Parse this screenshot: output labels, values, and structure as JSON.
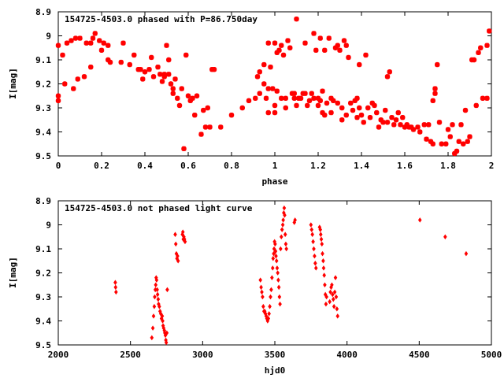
{
  "chart_data": [
    {
      "type": "scatter",
      "title": "154725-4503.0 phased with P=86.750day",
      "xlabel": "phase",
      "ylabel": "I[mag]",
      "xlim": [
        0,
        2
      ],
      "ylim": [
        8.9,
        9.5
      ],
      "y_inverted": true,
      "x_ticks": [
        "0",
        "0.2",
        "0.4",
        "0.6",
        "0.8",
        "1",
        "1.2",
        "1.4",
        "1.6",
        "1.8",
        "2"
      ],
      "x_tick_values": [
        0,
        0.2,
        0.4,
        0.6,
        0.8,
        1.0,
        1.2,
        1.4,
        1.6,
        1.8,
        2.0
      ],
      "y_ticks": [
        "8.9",
        "9",
        "9.1",
        "9.2",
        "9.3",
        "9.4",
        "9.5"
      ],
      "y_tick_values": [
        8.9,
        9.0,
        9.1,
        9.2,
        9.3,
        9.4,
        9.5
      ],
      "grid": false,
      "marker_color": "#ff0000",
      "points": [
        [
          0.0,
          9.04
        ],
        [
          0.0,
          9.25
        ],
        [
          0.0,
          9.27
        ],
        [
          0.02,
          9.08
        ],
        [
          0.03,
          9.2
        ],
        [
          0.04,
          9.03
        ],
        [
          0.06,
          9.02
        ],
        [
          0.07,
          9.22
        ],
        [
          0.08,
          9.01
        ],
        [
          0.09,
          9.18
        ],
        [
          0.1,
          9.01
        ],
        [
          0.12,
          9.17
        ],
        [
          0.13,
          9.03
        ],
        [
          0.15,
          9.03
        ],
        [
          0.15,
          9.13
        ],
        [
          0.16,
          9.01
        ],
        [
          0.17,
          8.99
        ],
        [
          0.19,
          9.02
        ],
        [
          0.2,
          9.06
        ],
        [
          0.21,
          9.03
        ],
        [
          0.23,
          9.04
        ],
        [
          0.23,
          9.1
        ],
        [
          0.24,
          9.11
        ],
        [
          0.29,
          9.11
        ],
        [
          0.3,
          9.03
        ],
        [
          0.33,
          9.12
        ],
        [
          0.35,
          9.08
        ],
        [
          0.37,
          9.14
        ],
        [
          0.38,
          9.14
        ],
        [
          0.39,
          9.18
        ],
        [
          0.4,
          9.15
        ],
        [
          0.42,
          9.14
        ],
        [
          0.43,
          9.09
        ],
        [
          0.44,
          9.17
        ],
        [
          0.46,
          9.13
        ],
        [
          0.47,
          9.16
        ],
        [
          0.48,
          9.19
        ],
        [
          0.49,
          9.16
        ],
        [
          0.49,
          9.17
        ],
        [
          0.5,
          9.04
        ],
        [
          0.51,
          9.16
        ],
        [
          0.51,
          9.1
        ],
        [
          0.52,
          9.2
        ],
        [
          0.53,
          9.24
        ],
        [
          0.53,
          9.22
        ],
        [
          0.54,
          9.18
        ],
        [
          0.55,
          9.26
        ],
        [
          0.56,
          9.29
        ],
        [
          0.57,
          9.22
        ],
        [
          0.58,
          9.47
        ],
        [
          0.59,
          9.08
        ],
        [
          0.6,
          9.25
        ],
        [
          0.61,
          9.27
        ],
        [
          0.62,
          9.26
        ],
        [
          0.63,
          9.33
        ],
        [
          0.64,
          9.25
        ],
        [
          0.66,
          9.41
        ],
        [
          0.67,
          9.31
        ],
        [
          0.68,
          9.38
        ],
        [
          0.69,
          9.3
        ],
        [
          0.7,
          9.38
        ],
        [
          0.71,
          9.14
        ],
        [
          0.72,
          9.14
        ],
        [
          0.75,
          9.38
        ],
        [
          0.8,
          9.33
        ],
        [
          0.85,
          9.3
        ],
        [
          0.88,
          9.27
        ],
        [
          0.91,
          9.26
        ],
        [
          0.92,
          9.17
        ],
        [
          0.93,
          9.15
        ],
        [
          0.93,
          9.24
        ],
        [
          0.95,
          9.2
        ],
        [
          0.95,
          9.12
        ],
        [
          0.96,
          9.26
        ],
        [
          0.97,
          9.03
        ],
        [
          0.97,
          9.22
        ],
        [
          0.97,
          9.32
        ],
        [
          0.98,
          9.13
        ],
        [
          0.99,
          9.22
        ],
        [
          1.0,
          9.03
        ],
        [
          1.0,
          9.29
        ],
        [
          1.0,
          9.32
        ],
        [
          1.01,
          9.23
        ],
        [
          1.01,
          9.07
        ],
        [
          1.02,
          9.06
        ],
        [
          1.03,
          9.04
        ],
        [
          1.03,
          9.26
        ],
        [
          1.04,
          9.08
        ],
        [
          1.05,
          9.26
        ],
        [
          1.05,
          9.3
        ],
        [
          1.06,
          9.02
        ],
        [
          1.07,
          9.05
        ],
        [
          1.08,
          9.24
        ],
        [
          1.09,
          9.24
        ],
        [
          1.09,
          9.26
        ],
        [
          1.1,
          8.93
        ],
        [
          1.1,
          9.29
        ],
        [
          1.11,
          9.26
        ],
        [
          1.12,
          9.26
        ],
        [
          1.13,
          9.24
        ],
        [
          1.14,
          9.03
        ],
        [
          1.14,
          9.24
        ],
        [
          1.15,
          9.29
        ],
        [
          1.16,
          9.27
        ],
        [
          1.17,
          9.24
        ],
        [
          1.18,
          8.99
        ],
        [
          1.18,
          9.26
        ],
        [
          1.19,
          9.06
        ],
        [
          1.2,
          9.29
        ],
        [
          1.2,
          9.26
        ],
        [
          1.21,
          9.01
        ],
        [
          1.21,
          9.27
        ],
        [
          1.22,
          9.32
        ],
        [
          1.22,
          9.23
        ],
        [
          1.23,
          9.06
        ],
        [
          1.23,
          9.33
        ],
        [
          1.24,
          9.28
        ],
        [
          1.25,
          9.01
        ],
        [
          1.26,
          9.32
        ],
        [
          1.26,
          9.26
        ],
        [
          1.27,
          9.27
        ],
        [
          1.28,
          9.05
        ],
        [
          1.29,
          9.04
        ],
        [
          1.29,
          9.28
        ],
        [
          1.3,
          9.06
        ],
        [
          1.31,
          9.35
        ],
        [
          1.31,
          9.3
        ],
        [
          1.32,
          9.02
        ],
        [
          1.33,
          9.04
        ],
        [
          1.33,
          9.33
        ],
        [
          1.34,
          9.09
        ],
        [
          1.35,
          9.28
        ],
        [
          1.36,
          9.31
        ],
        [
          1.37,
          9.27
        ],
        [
          1.38,
          9.26
        ],
        [
          1.38,
          9.34
        ],
        [
          1.39,
          9.12
        ],
        [
          1.39,
          9.3
        ],
        [
          1.4,
          9.33
        ],
        [
          1.41,
          9.36
        ],
        [
          1.42,
          9.08
        ],
        [
          1.43,
          9.3
        ],
        [
          1.44,
          9.34
        ],
        [
          1.45,
          9.28
        ],
        [
          1.46,
          9.29
        ],
        [
          1.47,
          9.32
        ],
        [
          1.48,
          9.38
        ],
        [
          1.49,
          9.35
        ],
        [
          1.5,
          9.36
        ],
        [
          1.51,
          9.31
        ],
        [
          1.52,
          9.17
        ],
        [
          1.52,
          9.36
        ],
        [
          1.53,
          9.15
        ],
        [
          1.54,
          9.34
        ],
        [
          1.55,
          9.37
        ],
        [
          1.56,
          9.35
        ],
        [
          1.57,
          9.32
        ],
        [
          1.58,
          9.37
        ],
        [
          1.59,
          9.34
        ],
        [
          1.6,
          9.38
        ],
        [
          1.61,
          9.37
        ],
        [
          1.62,
          9.38
        ],
        [
          1.63,
          9.38
        ],
        [
          1.64,
          9.39
        ],
        [
          1.66,
          9.38
        ],
        [
          1.67,
          9.4
        ],
        [
          1.69,
          9.37
        ],
        [
          1.7,
          9.43
        ],
        [
          1.71,
          9.37
        ],
        [
          1.72,
          9.44
        ],
        [
          1.73,
          9.45
        ],
        [
          1.73,
          9.27
        ],
        [
          1.74,
          9.24
        ],
        [
          1.74,
          9.22
        ],
        [
          1.75,
          9.12
        ],
        [
          1.76,
          9.36
        ],
        [
          1.77,
          9.45
        ],
        [
          1.79,
          9.45
        ],
        [
          1.8,
          9.39
        ],
        [
          1.81,
          9.42
        ],
        [
          1.82,
          9.37
        ],
        [
          1.83,
          9.49
        ],
        [
          1.84,
          9.48
        ],
        [
          1.85,
          9.44
        ],
        [
          1.86,
          9.37
        ],
        [
          1.87,
          9.45
        ],
        [
          1.88,
          9.31
        ],
        [
          1.89,
          9.44
        ],
        [
          1.9,
          9.42
        ],
        [
          1.91,
          9.1
        ],
        [
          1.92,
          9.1
        ],
        [
          1.93,
          9.29
        ],
        [
          1.94,
          9.07
        ],
        [
          1.95,
          9.05
        ],
        [
          1.96,
          9.26
        ],
        [
          1.98,
          9.26
        ],
        [
          1.98,
          9.04
        ],
        [
          1.99,
          8.98
        ]
      ]
    },
    {
      "type": "scatter",
      "title": "154725-4503.0 not phased light curve",
      "xlabel": "hjd0",
      "ylabel": "I[mag]",
      "xlim": [
        2000,
        5000
      ],
      "ylim": [
        8.9,
        9.5
      ],
      "y_inverted": true,
      "x_ticks": [
        "2000",
        "2500",
        "3000",
        "3500",
        "4000",
        "4500",
        "5000"
      ],
      "x_tick_values": [
        2000,
        2500,
        3000,
        3500,
        4000,
        4500,
        5000
      ],
      "y_ticks": [
        "8.9",
        "9",
        "9.1",
        "9.2",
        "9.3",
        "9.4",
        "9.5"
      ],
      "y_tick_values": [
        8.9,
        9.0,
        9.1,
        9.2,
        9.3,
        9.4,
        9.5
      ],
      "grid": false,
      "marker_color": "#ff0000",
      "points": [
        [
          2395,
          9.24
        ],
        [
          2397,
          9.26
        ],
        [
          2400,
          9.28
        ],
        [
          2648,
          9.47
        ],
        [
          2655,
          9.43
        ],
        [
          2660,
          9.38
        ],
        [
          2665,
          9.34
        ],
        [
          2668,
          9.3
        ],
        [
          2672,
          9.27
        ],
        [
          2675,
          9.25
        ],
        [
          2678,
          9.22
        ],
        [
          2681,
          9.23
        ],
        [
          2685,
          9.27
        ],
        [
          2688,
          9.29
        ],
        [
          2692,
          9.31
        ],
        [
          2695,
          9.33
        ],
        [
          2700,
          9.34
        ],
        [
          2705,
          9.36
        ],
        [
          2710,
          9.37
        ],
        [
          2715,
          9.39
        ],
        [
          2720,
          9.38
        ],
        [
          2723,
          9.4
        ],
        [
          2726,
          9.42
        ],
        [
          2730,
          9.43
        ],
        [
          2735,
          9.44
        ],
        [
          2738,
          9.45
        ],
        [
          2742,
          9.46
        ],
        [
          2745,
          9.48
        ],
        [
          2748,
          9.49
        ],
        [
          2752,
          9.45
        ],
        [
          2755,
          9.27
        ],
        [
          2810,
          9.04
        ],
        [
          2814,
          9.08
        ],
        [
          2818,
          9.12
        ],
        [
          2822,
          9.14
        ],
        [
          2826,
          9.13
        ],
        [
          2830,
          9.15
        ],
        [
          2860,
          9.04
        ],
        [
          2863,
          9.03
        ],
        [
          2866,
          9.06
        ],
        [
          2870,
          9.05
        ],
        [
          2874,
          9.06
        ],
        [
          2878,
          9.07
        ],
        [
          3400,
          9.23
        ],
        [
          3405,
          9.26
        ],
        [
          3410,
          9.28
        ],
        [
          3415,
          9.3
        ],
        [
          3420,
          9.34
        ],
        [
          3425,
          9.36
        ],
        [
          3430,
          9.36
        ],
        [
          3435,
          9.37
        ],
        [
          3440,
          9.38
        ],
        [
          3445,
          9.39
        ],
        [
          3450,
          9.4
        ],
        [
          3455,
          9.39
        ],
        [
          3460,
          9.37
        ],
        [
          3465,
          9.34
        ],
        [
          3470,
          9.3
        ],
        [
          3475,
          9.27
        ],
        [
          3480,
          9.22
        ],
        [
          3485,
          9.18
        ],
        [
          3488,
          9.14
        ],
        [
          3492,
          9.12
        ],
        [
          3495,
          9.1
        ],
        [
          3498,
          9.07
        ],
        [
          3502,
          9.08
        ],
        [
          3505,
          9.11
        ],
        [
          3508,
          9.13
        ],
        [
          3512,
          9.15
        ],
        [
          3516,
          9.18
        ],
        [
          3520,
          9.2
        ],
        [
          3524,
          9.23
        ],
        [
          3528,
          9.26
        ],
        [
          3532,
          9.3
        ],
        [
          3536,
          9.33
        ],
        [
          3540,
          9.1
        ],
        [
          3545,
          9.05
        ],
        [
          3550,
          9.02
        ],
        [
          3555,
          9.0
        ],
        [
          3558,
          8.98
        ],
        [
          3562,
          8.95
        ],
        [
          3565,
          8.93
        ],
        [
          3568,
          8.96
        ],
        [
          3572,
          9.04
        ],
        [
          3576,
          9.08
        ],
        [
          3580,
          9.1
        ],
        [
          3635,
          8.99
        ],
        [
          3640,
          8.98
        ],
        [
          3750,
          9.0
        ],
        [
          3755,
          9.02
        ],
        [
          3760,
          9.04
        ],
        [
          3765,
          9.07
        ],
        [
          3770,
          9.1
        ],
        [
          3775,
          9.13
        ],
        [
          3780,
          9.16
        ],
        [
          3785,
          9.18
        ],
        [
          3810,
          9.01
        ],
        [
          3815,
          9.02
        ],
        [
          3818,
          9.04
        ],
        [
          3822,
          9.06
        ],
        [
          3826,
          9.08
        ],
        [
          3830,
          9.12
        ],
        [
          3835,
          9.15
        ],
        [
          3838,
          9.18
        ],
        [
          3842,
          9.21
        ],
        [
          3846,
          9.25
        ],
        [
          3850,
          9.29
        ],
        [
          3854,
          9.33
        ],
        [
          3858,
          9.3
        ],
        [
          3880,
          9.32
        ],
        [
          3885,
          9.28
        ],
        [
          3890,
          9.26
        ],
        [
          3895,
          9.25
        ],
        [
          3900,
          9.29
        ],
        [
          3905,
          9.31
        ],
        [
          3910,
          9.34
        ],
        [
          3915,
          9.28
        ],
        [
          3920,
          9.22
        ],
        [
          3925,
          9.3
        ],
        [
          3930,
          9.35
        ],
        [
          3935,
          9.38
        ],
        [
          4505,
          8.98
        ],
        [
          4680,
          9.05
        ],
        [
          4825,
          9.12
        ]
      ]
    }
  ]
}
